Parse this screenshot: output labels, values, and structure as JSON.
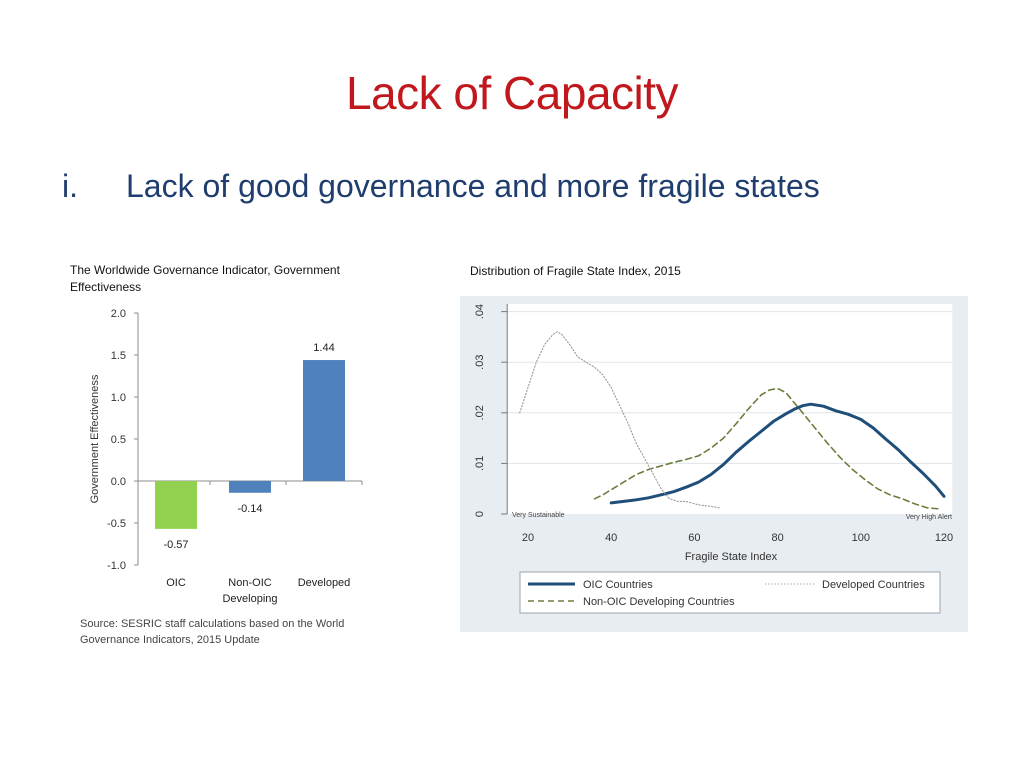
{
  "slide": {
    "title": "Lack of Capacity",
    "bullet_number": "i.",
    "bullet_text": "Lack of good governance and more fragile states"
  },
  "colors": {
    "title": "#c0181c",
    "bullet": "#1f3d6e",
    "oic_bar": "#92d050",
    "bar": "#4f81bd",
    "oic_line": "#1f4e79",
    "nonoic_line": "#6b7d3e",
    "developed_line": "#999999",
    "plot_bg": "#e8edf2"
  },
  "source": "Source: SESRIC staff calculations based on the World Governance Indicators, 2015 Update",
  "chart_data": [
    {
      "type": "bar",
      "title": "The Worldwide Governance Indicator, Government Effectiveness",
      "categories": [
        "OIC",
        "Non-OIC\nDeveloping",
        "Developed"
      ],
      "category_lines": [
        [
          "OIC"
        ],
        [
          "Non-OIC",
          "Developing"
        ],
        [
          "Developed"
        ]
      ],
      "values": [
        -0.57,
        -0.14,
        1.44
      ],
      "value_labels": [
        "-0.57",
        "-0.14",
        "1.44"
      ],
      "ylabel": "Government Effectiveness",
      "xlabel": "",
      "ylim": [
        -1.0,
        2.0
      ],
      "yticks": [
        2.0,
        1.5,
        1.0,
        0.5,
        0.0,
        -0.5,
        -1.0
      ],
      "ytick_labels": [
        "2.0",
        "1.5",
        "1.0",
        "0.5",
        "0.0",
        "-0.5",
        "-1.0"
      ]
    },
    {
      "type": "line",
      "title": "Distribution of Fragile State Index, 2015",
      "xlabel": "Fragile State Index",
      "ylabel": "",
      "xlim": [
        15,
        122
      ],
      "ylim": [
        0,
        0.04
      ],
      "xticks": [
        20,
        40,
        60,
        80,
        100,
        120
      ],
      "xtick_labels": [
        "20",
        "40",
        "60",
        "80",
        "100",
        "120"
      ],
      "yticks": [
        0,
        0.01,
        0.02,
        0.03,
        0.04
      ],
      "ytick_labels": [
        "0",
        ".01",
        ".02",
        ".03",
        ".04"
      ],
      "annotations": [
        "Very Sustainable",
        "Very High Alert"
      ],
      "grid": true,
      "legend": "bottom",
      "series": [
        {
          "name": "OIC Countries",
          "style": "solid",
          "x": [
            40,
            43,
            46,
            49,
            52,
            55,
            58,
            61,
            64,
            67,
            70,
            73,
            76,
            79,
            82,
            84,
            86,
            88,
            91,
            94,
            97,
            100,
            103,
            106,
            109,
            112,
            115,
            118,
            120
          ],
          "y": [
            0.0022,
            0.0025,
            0.0028,
            0.0032,
            0.0038,
            0.0044,
            0.0053,
            0.0063,
            0.0078,
            0.0098,
            0.0122,
            0.0143,
            0.0163,
            0.0183,
            0.0198,
            0.0207,
            0.0214,
            0.0217,
            0.0213,
            0.0204,
            0.0197,
            0.0187,
            0.017,
            0.0148,
            0.0127,
            0.0103,
            0.008,
            0.0055,
            0.0035
          ]
        },
        {
          "name": "Non-OIC Developing Countries",
          "style": "dashed",
          "x": [
            36,
            38,
            40,
            42,
            44,
            46,
            49,
            52,
            55,
            58,
            61,
            64,
            67,
            70,
            73,
            76,
            78,
            80,
            82,
            84,
            86,
            89,
            92,
            95,
            98,
            101,
            104,
            107,
            110,
            113,
            116,
            119
          ],
          "y": [
            0.003,
            0.0038,
            0.0048,
            0.0058,
            0.0068,
            0.0078,
            0.0088,
            0.0095,
            0.0102,
            0.0108,
            0.0115,
            0.013,
            0.015,
            0.0178,
            0.0208,
            0.0235,
            0.0245,
            0.0248,
            0.024,
            0.022,
            0.02,
            0.017,
            0.014,
            0.0112,
            0.0088,
            0.0068,
            0.005,
            0.0038,
            0.003,
            0.002,
            0.0012,
            0.001
          ]
        },
        {
          "name": "Developed Countries",
          "style": "dotted",
          "x": [
            18,
            20,
            22,
            24,
            26,
            27,
            28,
            30,
            32,
            34,
            36,
            38,
            40,
            42,
            44,
            46,
            48,
            50,
            52,
            54,
            56,
            58,
            61,
            64,
            66
          ],
          "y": [
            0.02,
            0.025,
            0.03,
            0.0335,
            0.0355,
            0.036,
            0.0356,
            0.0335,
            0.031,
            0.03,
            0.029,
            0.0275,
            0.025,
            0.0215,
            0.018,
            0.014,
            0.011,
            0.008,
            0.005,
            0.003,
            0.0025,
            0.0025,
            0.0018,
            0.0015,
            0.0012
          ]
        }
      ]
    }
  ]
}
